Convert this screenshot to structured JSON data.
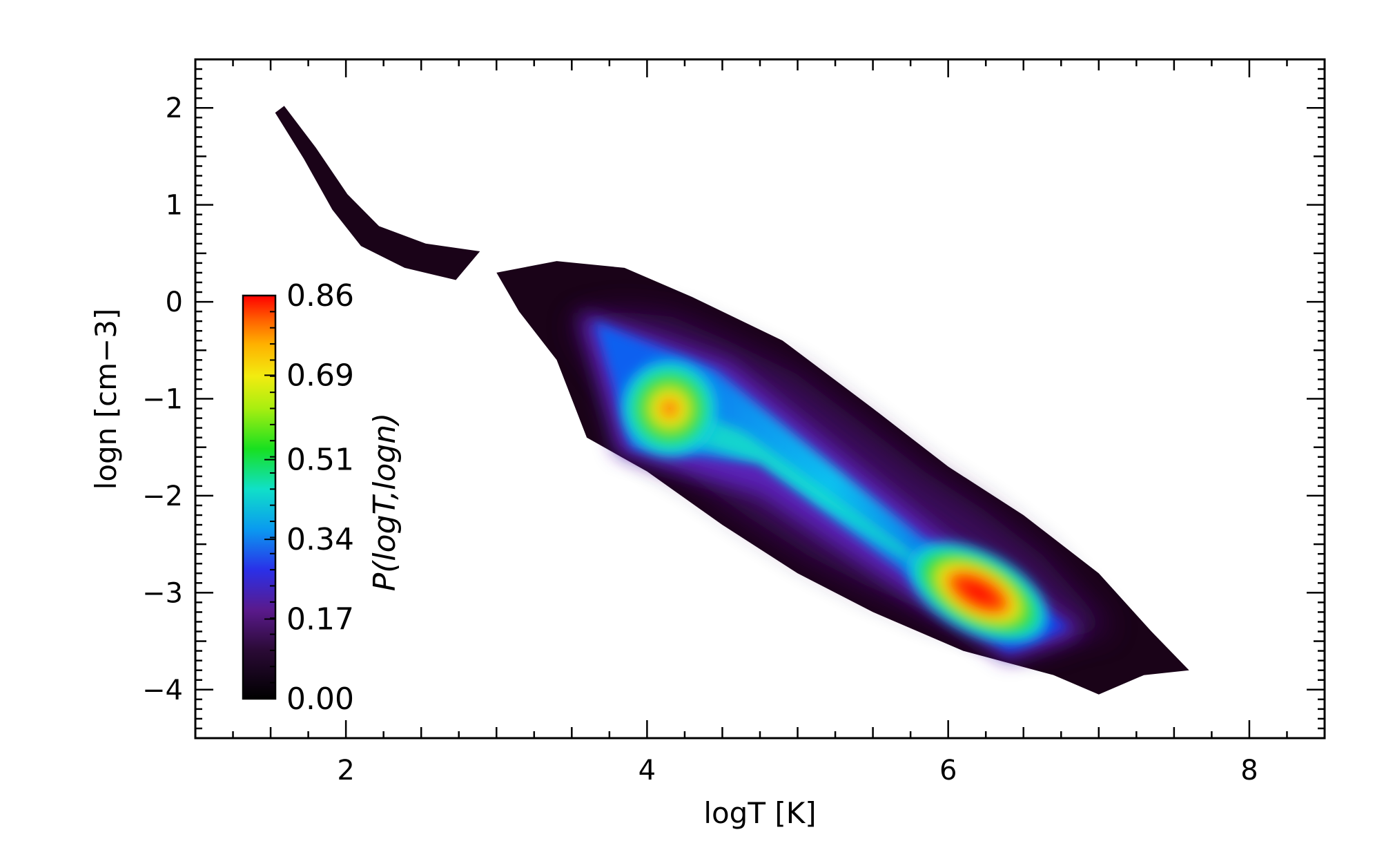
{
  "chart_data": {
    "type": "heatmap",
    "title": "",
    "xlabel": "logT [K]",
    "ylabel": "logn [cm−3]",
    "xlim": [
      1.0,
      8.5
    ],
    "ylim": [
      -4.5,
      2.5
    ],
    "x_ticks": [
      2,
      4,
      6,
      8
    ],
    "x_tick_labels": [
      "2",
      "4",
      "6",
      "8"
    ],
    "y_ticks": [
      2,
      1,
      0,
      -1,
      -2,
      -3,
      -4
    ],
    "y_tick_labels": [
      "2",
      "1",
      "0",
      "−1",
      "−2",
      "−3",
      "−4"
    ],
    "grid": false,
    "colormap": "rainbow (black → purple → blue → cyan → green → yellow → orange → red)",
    "colorbar": {
      "label": "P(logT,logn)",
      "placement": "inside-left",
      "range": [
        0.0,
        0.86
      ],
      "tick_labels": [
        "0.86",
        "0.69",
        "0.51",
        "0.34",
        "0.17",
        "0.00"
      ],
      "tick_values": [
        0.86,
        0.69,
        0.51,
        0.34,
        0.17,
        0.0
      ]
    },
    "distribution": {
      "description": "tail",
      "tail_ridge": [
        [
          1.55,
          2.0
        ],
        [
          1.75,
          1.55
        ],
        [
          1.95,
          1.05
        ],
        [
          2.15,
          0.7
        ],
        [
          2.45,
          0.5
        ],
        [
          2.8,
          0.4
        ]
      ],
      "main_body_outline": [
        [
          3.0,
          0.3
        ],
        [
          3.4,
          0.42
        ],
        [
          3.85,
          0.35
        ],
        [
          4.3,
          0.05
        ],
        [
          4.9,
          -0.4
        ],
        [
          5.5,
          -1.1
        ],
        [
          6.0,
          -1.7
        ],
        [
          6.5,
          -2.2
        ],
        [
          7.0,
          -2.8
        ],
        [
          7.35,
          -3.4
        ],
        [
          7.6,
          -3.8
        ],
        [
          7.3,
          -3.85
        ],
        [
          7.0,
          -4.05
        ],
        [
          6.7,
          -3.85
        ],
        [
          6.1,
          -3.6
        ],
        [
          5.5,
          -3.2
        ],
        [
          5.0,
          -2.8
        ],
        [
          4.5,
          -2.3
        ],
        [
          4.0,
          -1.75
        ],
        [
          3.6,
          -1.4
        ],
        [
          3.4,
          -0.6
        ],
        [
          3.15,
          -0.1
        ]
      ],
      "peaks": [
        {
          "logT": 4.15,
          "logn": -1.1,
          "value": 0.65
        },
        {
          "logT": 6.2,
          "logn": -3.0,
          "value": 0.86
        }
      ]
    }
  }
}
